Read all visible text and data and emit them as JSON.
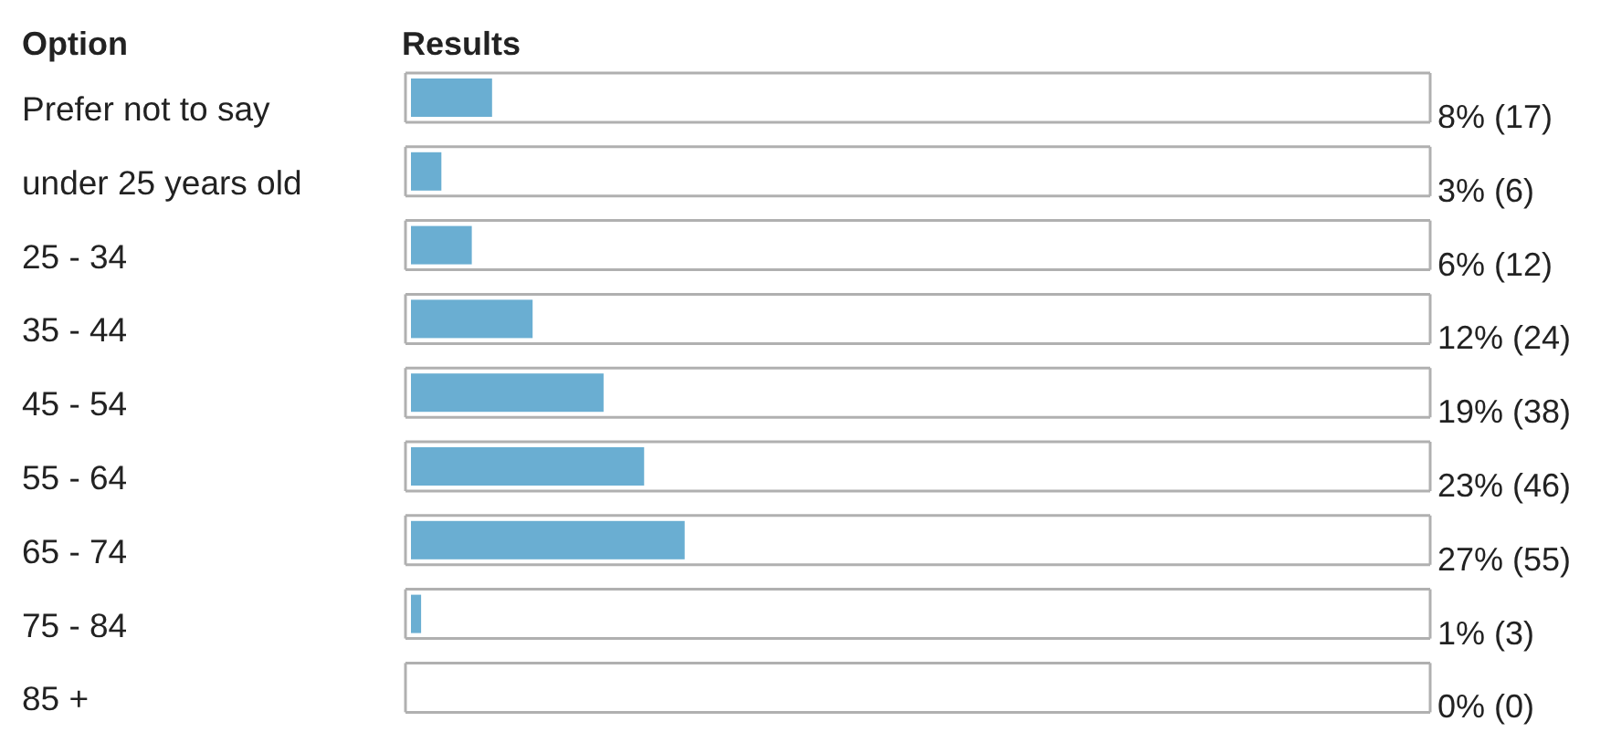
{
  "chart_data": {
    "type": "bar",
    "orientation": "horizontal",
    "xlabel": "Results",
    "ylabel": "Option",
    "categories": [
      "Prefer not to say",
      "under 25 years old",
      "25 - 34",
      "35 - 44",
      "45 - 54",
      "55 - 64",
      "65 - 74",
      "75 - 84",
      "85 +"
    ],
    "values": [
      8,
      3,
      6,
      12,
      19,
      23,
      27,
      1,
      0
    ],
    "value_labels": [
      "8% (17)",
      "3% (6)",
      "6% (12)",
      "12% (24)",
      "19% (38)",
      "23% (46)",
      "27% (55)",
      "1% (3)",
      "0% (0)"
    ],
    "color": "#6aaed2",
    "xlim": [
      0,
      100
    ],
    "tick_labels": "y"
  }
}
